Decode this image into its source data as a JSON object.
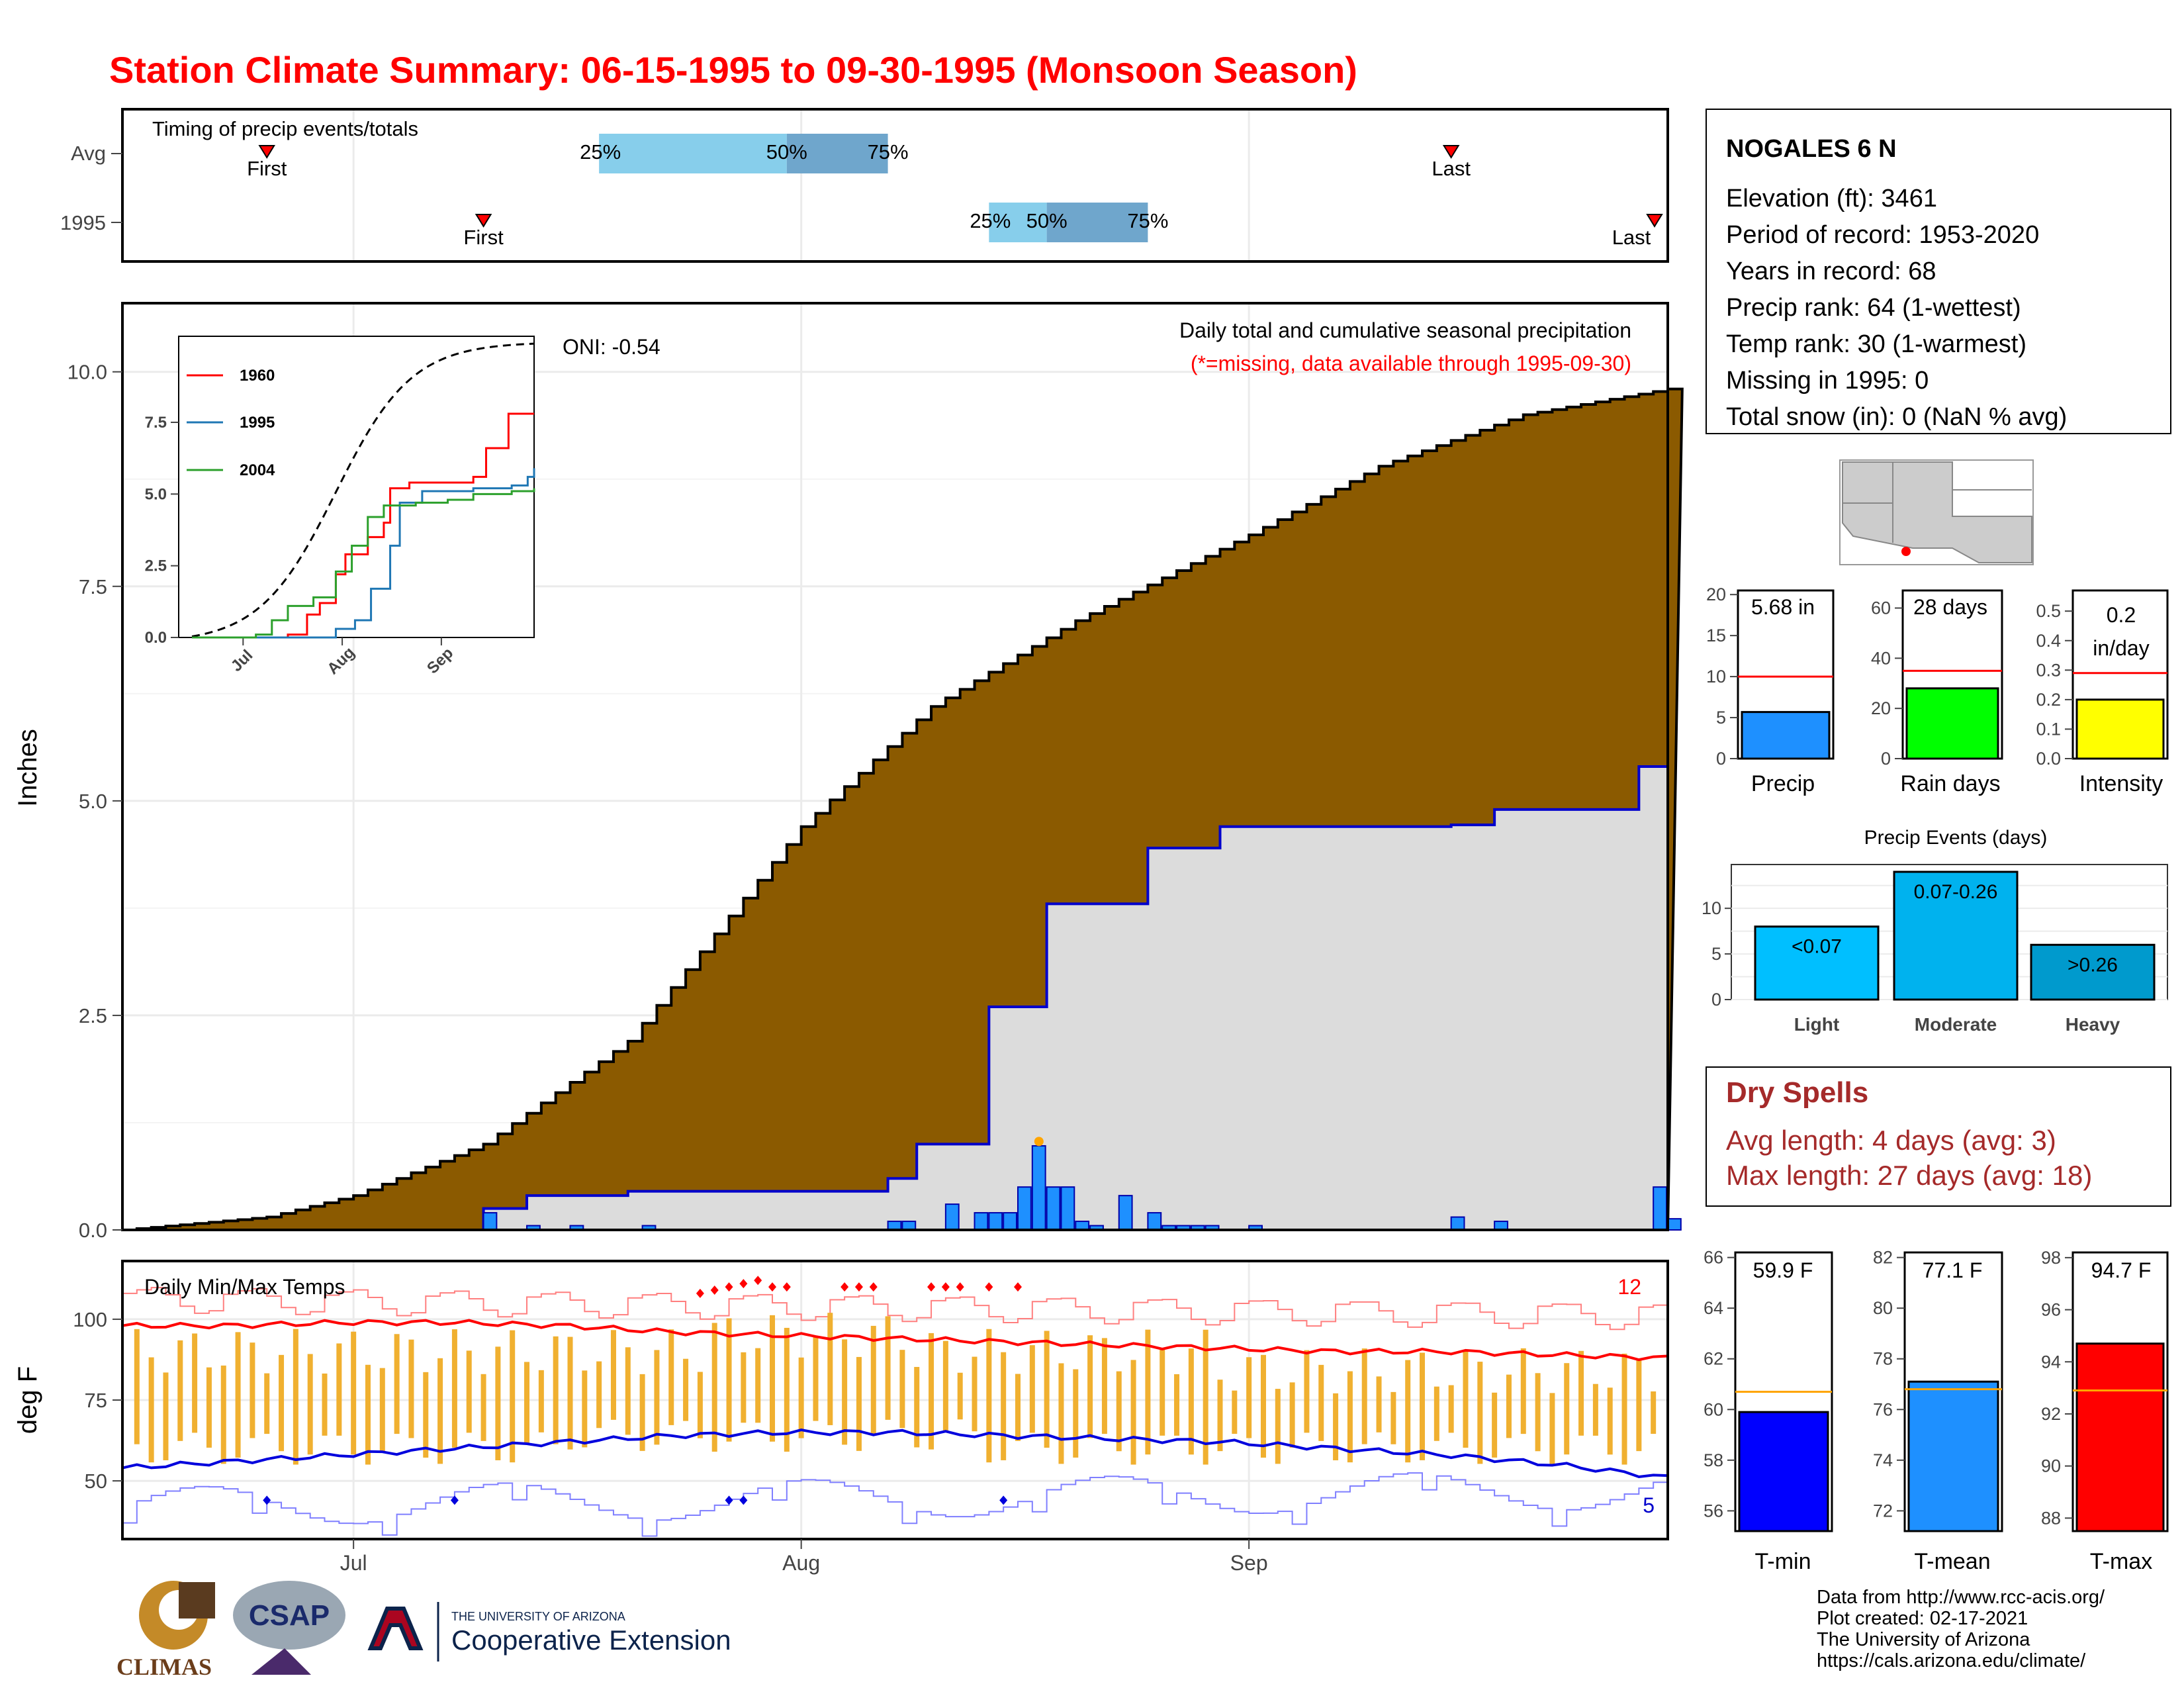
{
  "title": "Station Climate Summary: 06-15-1995 to 09-30-1995 (Monsoon Season)",
  "colors": {
    "title_red": "#ff0000",
    "brown": "#8b5a00",
    "missing_red": "#ff0000",
    "precip_blue": "#1e90ff",
    "dry_red": "#a52a2a"
  },
  "station": {
    "name": "NOGALES 6 N",
    "elevation": "Elevation (ft): 3461",
    "period": "Period of record: 1953-2020",
    "years": "Years in record: 68",
    "precip_rank": "Precip rank: 64 (1-wettest)",
    "temp_rank": "Temp rank: 30 (1-warmest)",
    "missing": "Missing in 1995: 0",
    "snow": "Total snow (in): 0 (NaN % avg)"
  },
  "timing": {
    "label": "Timing of precip events/totals",
    "rows": [
      {
        "name": "Avg",
        "first": "First",
        "last": "Last",
        "p25": "25%",
        "p50": "50%",
        "p75": "75%",
        "first_date": "1995-06-25",
        "last_date": "1995-09-15",
        "q25": "1995-07-18",
        "q50": "1995-07-31",
        "q75": "1995-08-07"
      },
      {
        "name": "1995",
        "first": "First",
        "last": "Last",
        "p25": "25%",
        "p50": "50%",
        "p75": "75%",
        "first_date": "1995-07-10",
        "last_date": "1995-09-30",
        "q25": "1995-08-14",
        "q50": "1995-08-18",
        "q75": "1995-08-25"
      }
    ]
  },
  "precip": {
    "title": "Daily total and cumulative seasonal precipitation",
    "missing_note": "(*=missing, data available through 1995-09-30)",
    "ylabel": "Inches",
    "yticks": [
      "0.0",
      "2.5",
      "5.0",
      "7.5",
      "10.0"
    ],
    "ylim": [
      0,
      10.8
    ],
    "oni": "ONI: -0.54",
    "xticks": [
      "Jul",
      "Aug",
      "Sep"
    ]
  },
  "inset": {
    "legend": [
      "1960",
      "1995",
      "2004"
    ],
    "legend_colors": [
      "#ff0000",
      "#1f77b4",
      "#2ca02c"
    ],
    "yticks": [
      "0.0",
      "2.5",
      "5.0",
      "7.5"
    ],
    "xticks": [
      "Jul",
      "Aug",
      "Sep"
    ]
  },
  "temps": {
    "label": "Daily Min/Max Temps",
    "ylabel": "deg F",
    "yticks": [
      "50",
      "75",
      "100"
    ],
    "count_hot": "12",
    "count_cold": "5"
  },
  "bars_precip": {
    "labels": [
      "Precip",
      "Rain days",
      "Intensity"
    ],
    "values_text": [
      "5.68 in",
      "28 days",
      "0.2",
      "in/day"
    ],
    "precip_ticks": [
      "0",
      "5",
      "10",
      "15",
      "20"
    ],
    "rain_ticks": [
      "0",
      "20",
      "40",
      "60"
    ],
    "int_ticks": [
      "0.0",
      "0.1",
      "0.2",
      "0.3",
      "0.4",
      "0.5"
    ]
  },
  "events": {
    "title": "Precip Events (days)",
    "cats": [
      "Light",
      "Moderate",
      "Heavy"
    ],
    "labels": [
      "<0.07",
      "0.07-0.26",
      ">0.26"
    ],
    "ticks": [
      "0",
      "5",
      "10"
    ]
  },
  "dry": {
    "title": "Dry Spells",
    "avg": "Avg length: 4 days (avg: 3)",
    "max": "Max length: 27 days (avg: 18)"
  },
  "bars_temp": {
    "labels": [
      "T-min",
      "T-mean",
      "T-max"
    ],
    "values_text": [
      "59.9 F",
      "77.1 F",
      "94.7 F"
    ],
    "tmin_ticks": [
      "56",
      "58",
      "60",
      "62",
      "64",
      "66"
    ],
    "tmean_ticks": [
      "72",
      "74",
      "76",
      "78",
      "80",
      "82"
    ],
    "tmax_ticks": [
      "88",
      "90",
      "92",
      "94",
      "96",
      "98"
    ]
  },
  "footer": [
    "Data from http://www.rcc-acis.org/",
    "Plot created: 02-17-2021",
    "The University of Arizona",
    "https://cals.arizona.edu/climate/"
  ],
  "logos": {
    "climas": "CLIMAS",
    "csap": "CSAP",
    "ua_top": "THE UNIVERSITY OF ARIZONA",
    "ua_bottom": "Cooperative Extension"
  },
  "chart_data": [
    {
      "type": "area",
      "title": "Daily total and cumulative seasonal precipitation",
      "ylabel": "Inches",
      "ylim": [
        0,
        10.8
      ],
      "series": [
        {
          "name": "avg_cumulative",
          "x": [
            "1995-06-15",
            "1995-06-25",
            "1995-07-01",
            "1995-07-10",
            "1995-07-20",
            "1995-08-01",
            "1995-08-10",
            "1995-08-20",
            "1995-09-01",
            "1995-09-10",
            "1995-09-20",
            "1995-09-30"
          ],
          "values": [
            0.0,
            0.15,
            0.4,
            1.0,
            2.2,
            4.7,
            6.1,
            7.1,
            8.1,
            8.9,
            9.5,
            9.8
          ]
        },
        {
          "name": "1995_cumulative",
          "x": [
            "1995-06-15",
            "1995-07-10",
            "1995-07-13",
            "1995-07-20",
            "1995-08-01",
            "1995-08-07",
            "1995-08-09",
            "1995-08-14",
            "1995-08-18",
            "1995-08-25",
            "1995-08-30",
            "1995-09-15",
            "1995-09-18",
            "1995-09-28",
            "1995-09-30"
          ],
          "values": [
            0.0,
            0.25,
            0.4,
            0.45,
            0.45,
            0.6,
            1.0,
            2.6,
            3.8,
            4.45,
            4.7,
            4.72,
            4.9,
            5.4,
            5.68
          ]
        },
        {
          "name": "daily_1995",
          "x": [
            "1995-07-10",
            "1995-07-13",
            "1995-07-16",
            "1995-07-21",
            "1995-08-07",
            "1995-08-08",
            "1995-08-11",
            "1995-08-13",
            "1995-08-14",
            "1995-08-15",
            "1995-08-16",
            "1995-08-17",
            "1995-08-18",
            "1995-08-19",
            "1995-08-20",
            "1995-08-21",
            "1995-08-23",
            "1995-08-25",
            "1995-08-26",
            "1995-08-27",
            "1995-08-28",
            "1995-08-29",
            "1995-09-01",
            "1995-09-15",
            "1995-09-18",
            "1995-09-29",
            "1995-09-30"
          ],
          "values": [
            0.2,
            0.05,
            0.05,
            0.05,
            0.1,
            0.1,
            0.3,
            0.2,
            0.2,
            0.2,
            0.5,
            0.98,
            0.5,
            0.5,
            0.1,
            0.05,
            0.4,
            0.2,
            0.05,
            0.05,
            0.05,
            0.05,
            0.05,
            0.15,
            0.1,
            0.5,
            0.13
          ]
        }
      ]
    },
    {
      "type": "line",
      "title": "Daily Min/Max Temps",
      "ylabel": "deg F",
      "series": [
        {
          "name": "avg_max",
          "values": [
            98,
            98,
            99,
            99,
            98,
            96,
            95,
            94,
            93,
            92,
            91,
            90,
            90,
            89,
            88
          ]
        },
        {
          "name": "avg_min",
          "values": [
            54,
            56,
            58,
            60,
            62,
            64,
            65,
            65,
            64,
            63,
            62,
            60,
            58,
            55,
            51
          ]
        }
      ]
    },
    {
      "type": "bar",
      "categories": [
        "Precip",
        "Rain days",
        "Intensity"
      ],
      "values": [
        5.68,
        28,
        0.2
      ],
      "averages": [
        10,
        35,
        0.29
      ]
    },
    {
      "type": "bar",
      "title": "Precip Events (days)",
      "categories": [
        "Light",
        "Moderate",
        "Heavy"
      ],
      "values": [
        8,
        14,
        6
      ]
    },
    {
      "type": "bar",
      "categories": [
        "T-min",
        "T-mean",
        "T-max"
      ],
      "values": [
        59.9,
        77.1,
        94.7
      ],
      "averages": [
        60.7,
        76.8,
        92.9
      ]
    }
  ]
}
